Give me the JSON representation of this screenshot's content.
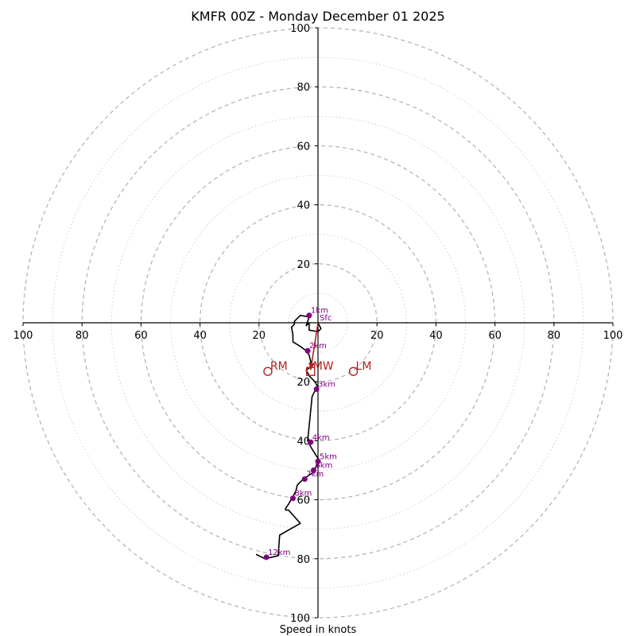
{
  "chart_data": {
    "type": "hodograph",
    "title": "KMFR 00Z - Monday December 01 2025",
    "xlabel": "Speed in knots",
    "axis_range": [
      -100,
      100
    ],
    "ring_labels": [
      "20",
      "40",
      "60",
      "80",
      "100"
    ],
    "x_ticks": [
      {
        "v": -100,
        "label": "100"
      },
      {
        "v": -80,
        "label": "80"
      },
      {
        "v": -60,
        "label": "60"
      },
      {
        "v": -40,
        "label": "40"
      },
      {
        "v": -20,
        "label": "20"
      },
      {
        "v": 20,
        "label": "20"
      },
      {
        "v": 40,
        "label": "40"
      },
      {
        "v": 60,
        "label": "60"
      },
      {
        "v": 80,
        "label": "80"
      },
      {
        "v": 100,
        "label": "100"
      }
    ],
    "y_ticks": [
      {
        "v": 100,
        "label": "100"
      },
      {
        "v": 80,
        "label": "80"
      },
      {
        "v": 60,
        "label": "60"
      },
      {
        "v": 40,
        "label": "40"
      },
      {
        "v": 20,
        "label": "20"
      },
      {
        "v": -20,
        "label": "20"
      },
      {
        "v": -40,
        "label": "40"
      },
      {
        "v": -60,
        "label": "60"
      },
      {
        "v": -80,
        "label": "80"
      },
      {
        "v": -100,
        "label": "100"
      }
    ],
    "trace": [
      [
        0,
        0
      ],
      [
        1,
        -2
      ],
      [
        0,
        -3
      ],
      [
        -3,
        -2.5
      ],
      [
        -3,
        0
      ],
      [
        -4,
        -1
      ],
      [
        -3,
        2
      ],
      [
        -6,
        2.5
      ],
      [
        -8,
        0.5
      ],
      [
        -8,
        -0.5
      ],
      [
        -9,
        -1.5
      ],
      [
        -8.5,
        -4
      ],
      [
        -8.5,
        -6.5
      ],
      [
        -6,
        -8
      ],
      [
        -4,
        -9.5
      ],
      [
        -3,
        -11
      ],
      [
        -2.5,
        -13
      ],
      [
        -2.5,
        -15
      ],
      [
        -4,
        -16
      ],
      [
        -3,
        -18
      ],
      [
        -1,
        -20
      ],
      [
        0,
        -22
      ],
      [
        -1,
        -23
      ],
      [
        -2,
        -25
      ],
      [
        -2.5,
        -30
      ],
      [
        -3,
        -35
      ],
      [
        -3.5,
        -40
      ],
      [
        -2.5,
        -42
      ],
      [
        0,
        -46
      ],
      [
        0.5,
        -47
      ],
      [
        -2,
        -51
      ],
      [
        -5,
        -53
      ],
      [
        -7,
        -55
      ],
      [
        -7.5,
        -57
      ],
      [
        -8.5,
        -59
      ],
      [
        -10,
        -61.5
      ],
      [
        -11,
        -63
      ],
      [
        -11,
        -63.5
      ],
      [
        -10,
        -63.5
      ],
      [
        -6,
        -68
      ],
      [
        -13,
        -72
      ],
      [
        -13.5,
        -79
      ],
      [
        -18,
        -80
      ],
      [
        -21,
        -78.5
      ]
    ],
    "height_markers": [
      {
        "label": "Sfc",
        "u": 0,
        "v": 0,
        "dot": false
      },
      {
        "label": "1km",
        "u": -3,
        "v": 2.5,
        "dot": true
      },
      {
        "label": "2km",
        "u": -3.5,
        "v": -9.5,
        "dot": true
      },
      {
        "label": "3km",
        "u": -0.5,
        "v": -22.5,
        "dot": true
      },
      {
        "label": "4km",
        "u": -2.5,
        "v": -40.5,
        "dot": true
      },
      {
        "label": "5km",
        "u": 0,
        "v": -47,
        "dot": true
      },
      {
        "label": "6km",
        "u": -1.5,
        "v": -50,
        "dot": true
      },
      {
        "label": "7km",
        "u": -4.5,
        "v": -53,
        "dot": true
      },
      {
        "label": "8km",
        "u": -8.5,
        "v": -59.5,
        "dot": true
      },
      {
        "label": "12km",
        "u": -17.5,
        "v": -79.5,
        "dot": true
      }
    ],
    "storm_motion": {
      "color": "#b22222",
      "arrow_from": [
        0,
        0
      ],
      "arrow_to": [
        -2.5,
        -16
      ],
      "points": [
        {
          "label": "RM",
          "u": -17,
          "v": -16.5,
          "shape": "circle"
        },
        {
          "label": "MW",
          "u": -2.5,
          "v": -16.5,
          "shape": "square"
        },
        {
          "label": "LM",
          "u": 12,
          "v": -16.5,
          "shape": "circle"
        }
      ]
    },
    "colors": {
      "trace": "#000000",
      "markers": "#800080",
      "storm": "#b22222",
      "grid": "#b0b0b0"
    }
  }
}
